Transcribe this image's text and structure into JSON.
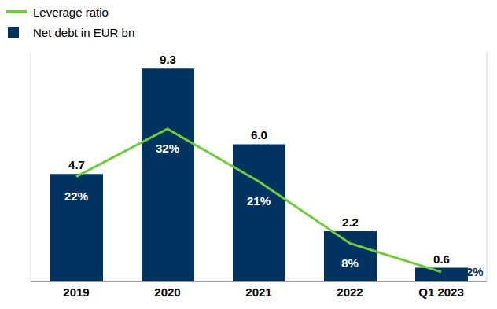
{
  "chart_data": {
    "type": "bar",
    "categories": [
      "2019",
      "2020",
      "2021",
      "2022",
      "Q1 2023"
    ],
    "series": [
      {
        "name": "Leverage ratio",
        "type": "line",
        "color": "#6ecc3b",
        "axis": "y2",
        "values": [
          22,
          32,
          21,
          8,
          2
        ],
        "value_labels": [
          "22%",
          "32%",
          "21%",
          "8%",
          "2%"
        ]
      },
      {
        "name": "Net debt in EUR bn",
        "type": "bar",
        "color": "#00335f",
        "values": [
          4.7,
          9.3,
          6.0,
          2.2,
          0.6
        ],
        "value_labels": [
          "4.7",
          "9.3",
          "6.0",
          "2.2",
          "0.6"
        ]
      }
    ],
    "ylim": [
      0,
      10
    ],
    "y2lim": [
      0,
      48
    ],
    "tick_labels": "x",
    "data_labels": true,
    "legend": "top-left"
  }
}
